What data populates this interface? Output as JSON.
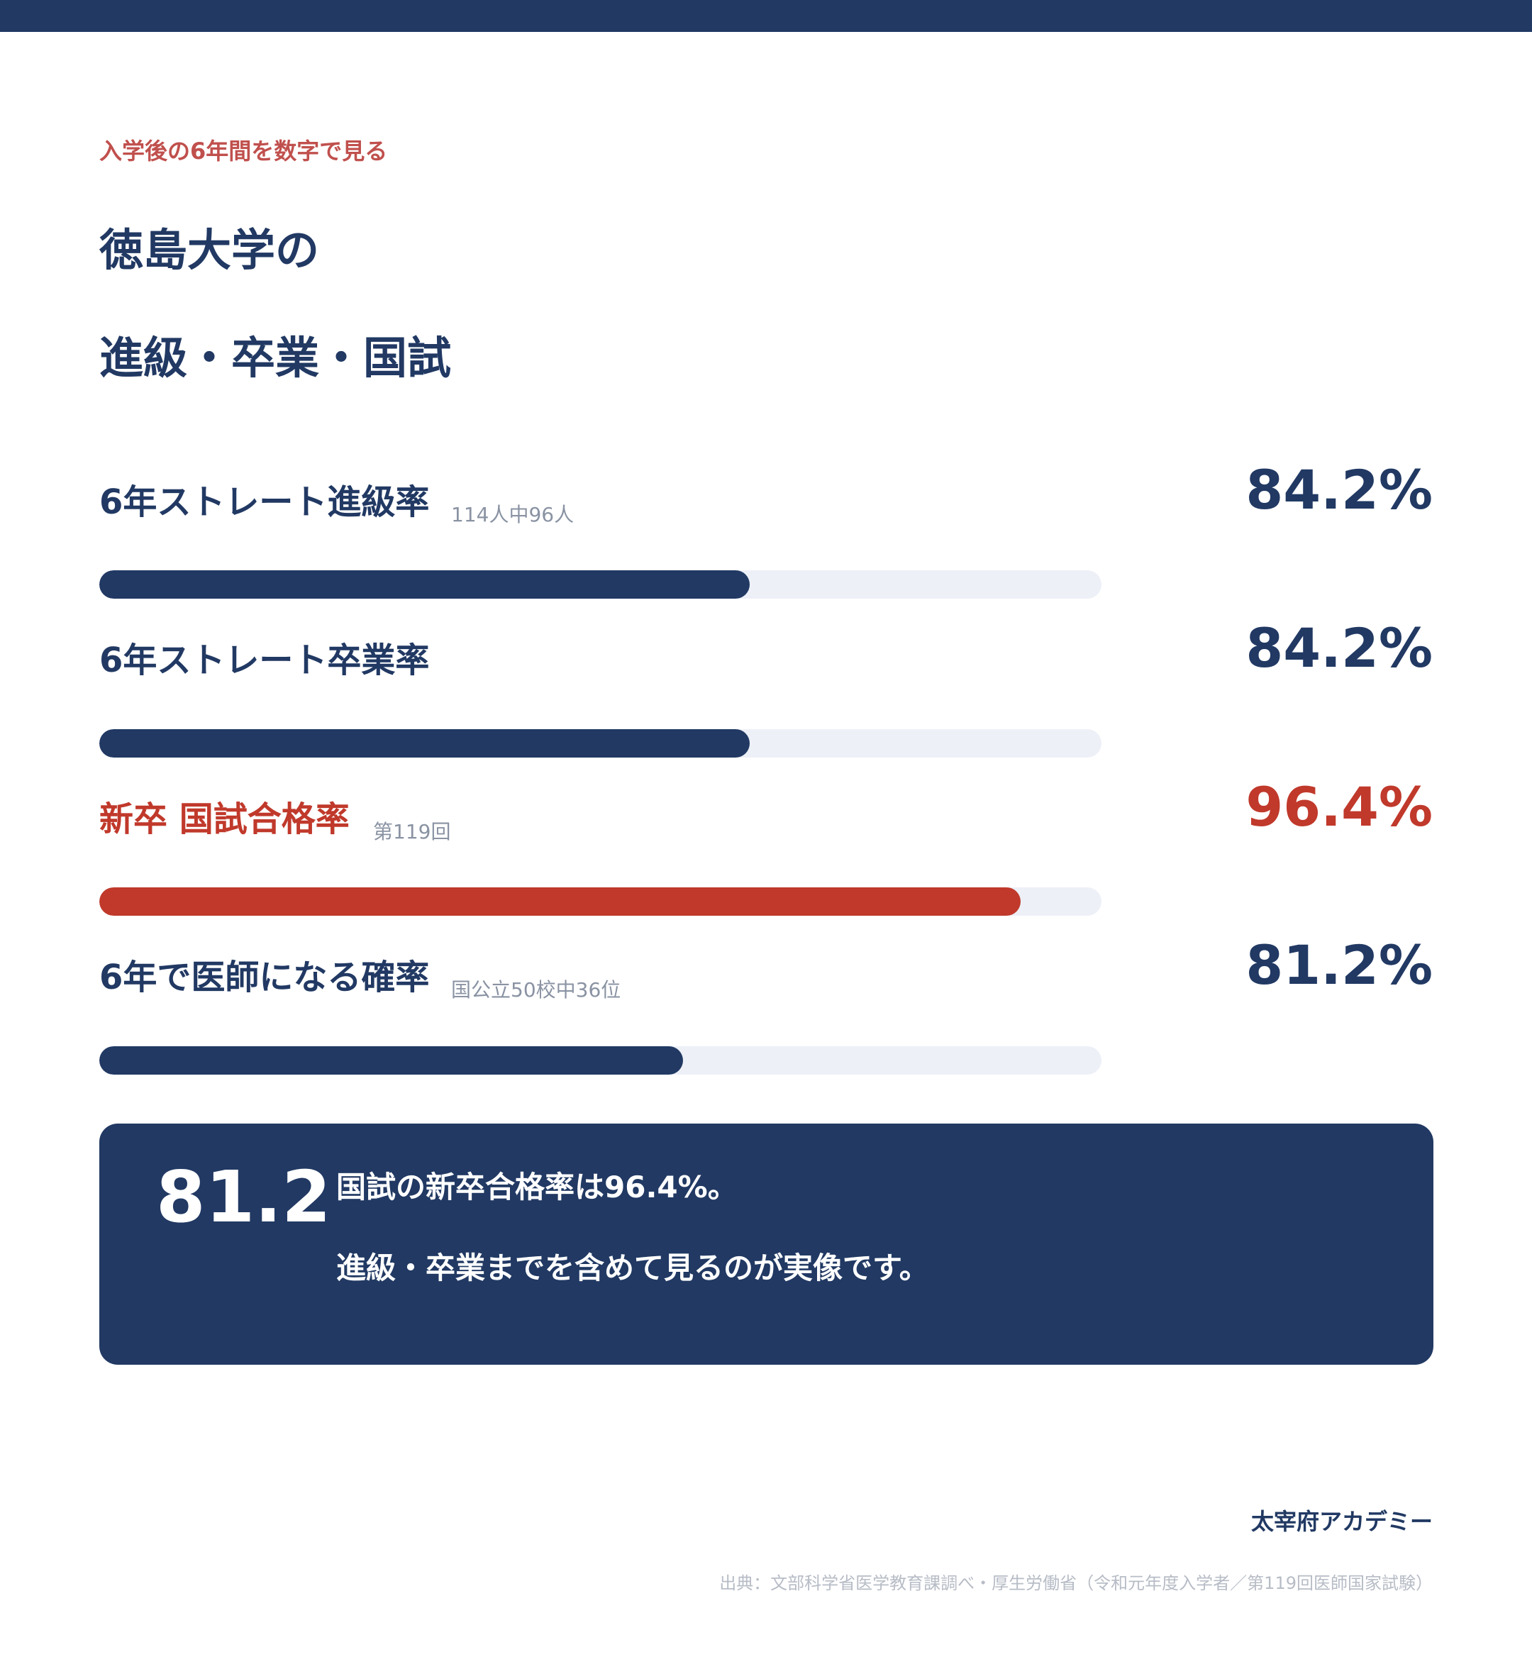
{
  "header": {
    "eyebrow": "入学後の6年間を数字で見る",
    "title_line1": "徳島大学の",
    "title_line2": "進級・卒業・国試"
  },
  "chart_data": {
    "type": "bar",
    "orientation": "horizontal",
    "xlim": [
      0,
      100
    ],
    "categories": [
      "6年ストレート進級率",
      "6年ストレート卒業率",
      "新卒 国試合格率",
      "6年で医師になる確率"
    ],
    "values": [
      84.2,
      84.2,
      96.4,
      81.2
    ],
    "value_labels": [
      "84.2%",
      "84.2%",
      "96.4%",
      "81.2%"
    ],
    "notes": [
      "114人中96人",
      "",
      "第119回",
      "国公立50校中36位"
    ],
    "highlight_index": 2,
    "colors": {
      "primary": "#213963",
      "accent": "#c0392b",
      "track": "#edf0f7"
    }
  },
  "callout": {
    "number": "81.2",
    "line1": "国試の新卒合格率は96.4%。",
    "line2": "進級・卒業までを含めて見るのが実像です。"
  },
  "footer": {
    "brand": "太宰府アカデミー",
    "source": "出典：文部科学省医学教育課調べ・厚生労働省（令和元年度入学者／第119回医師国家試験）"
  }
}
